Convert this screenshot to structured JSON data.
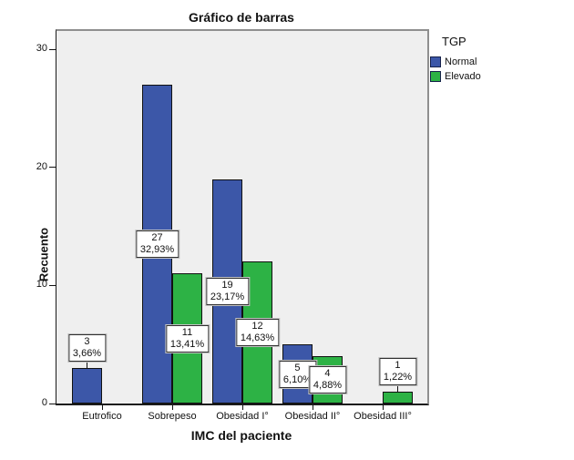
{
  "chart_data": {
    "type": "bar",
    "title": "Gráfico de barras",
    "xlabel": "IMC del paciente",
    "ylabel": "Recuento",
    "legend_title": "TGP",
    "legend_position": "top-right",
    "grid": false,
    "plot_background": "#efefef",
    "ylim": [
      0,
      31.5
    ],
    "yticks": [
      0,
      10,
      20,
      30
    ],
    "categories": [
      "Eutrofico",
      "Sobrepeso",
      "Obesidad I°",
      "Obesidad II°",
      "Obesidad III°"
    ],
    "series": [
      {
        "name": "Normal",
        "color": "#3c57a8",
        "values": [
          3,
          27,
          19,
          5,
          0
        ],
        "labels": [
          {
            "count": "3",
            "pct": "3,66%",
            "placement": "above"
          },
          {
            "count": "27",
            "pct": "32,93%",
            "placement": "center"
          },
          {
            "count": "19",
            "pct": "23,17%",
            "placement": "center"
          },
          {
            "count": "5",
            "pct": "6,10%",
            "placement": "center"
          },
          null
        ]
      },
      {
        "name": "Elevado",
        "color": "#2db245",
        "values": [
          0,
          11,
          12,
          4,
          1
        ],
        "labels": [
          null,
          {
            "count": "11",
            "pct": "13,41%",
            "placement": "center"
          },
          {
            "count": "12",
            "pct": "14,63%",
            "placement": "center"
          },
          {
            "count": "4",
            "pct": "4,88%",
            "placement": "center"
          },
          {
            "count": "1",
            "pct": "1,22%",
            "placement": "above"
          }
        ]
      }
    ]
  }
}
